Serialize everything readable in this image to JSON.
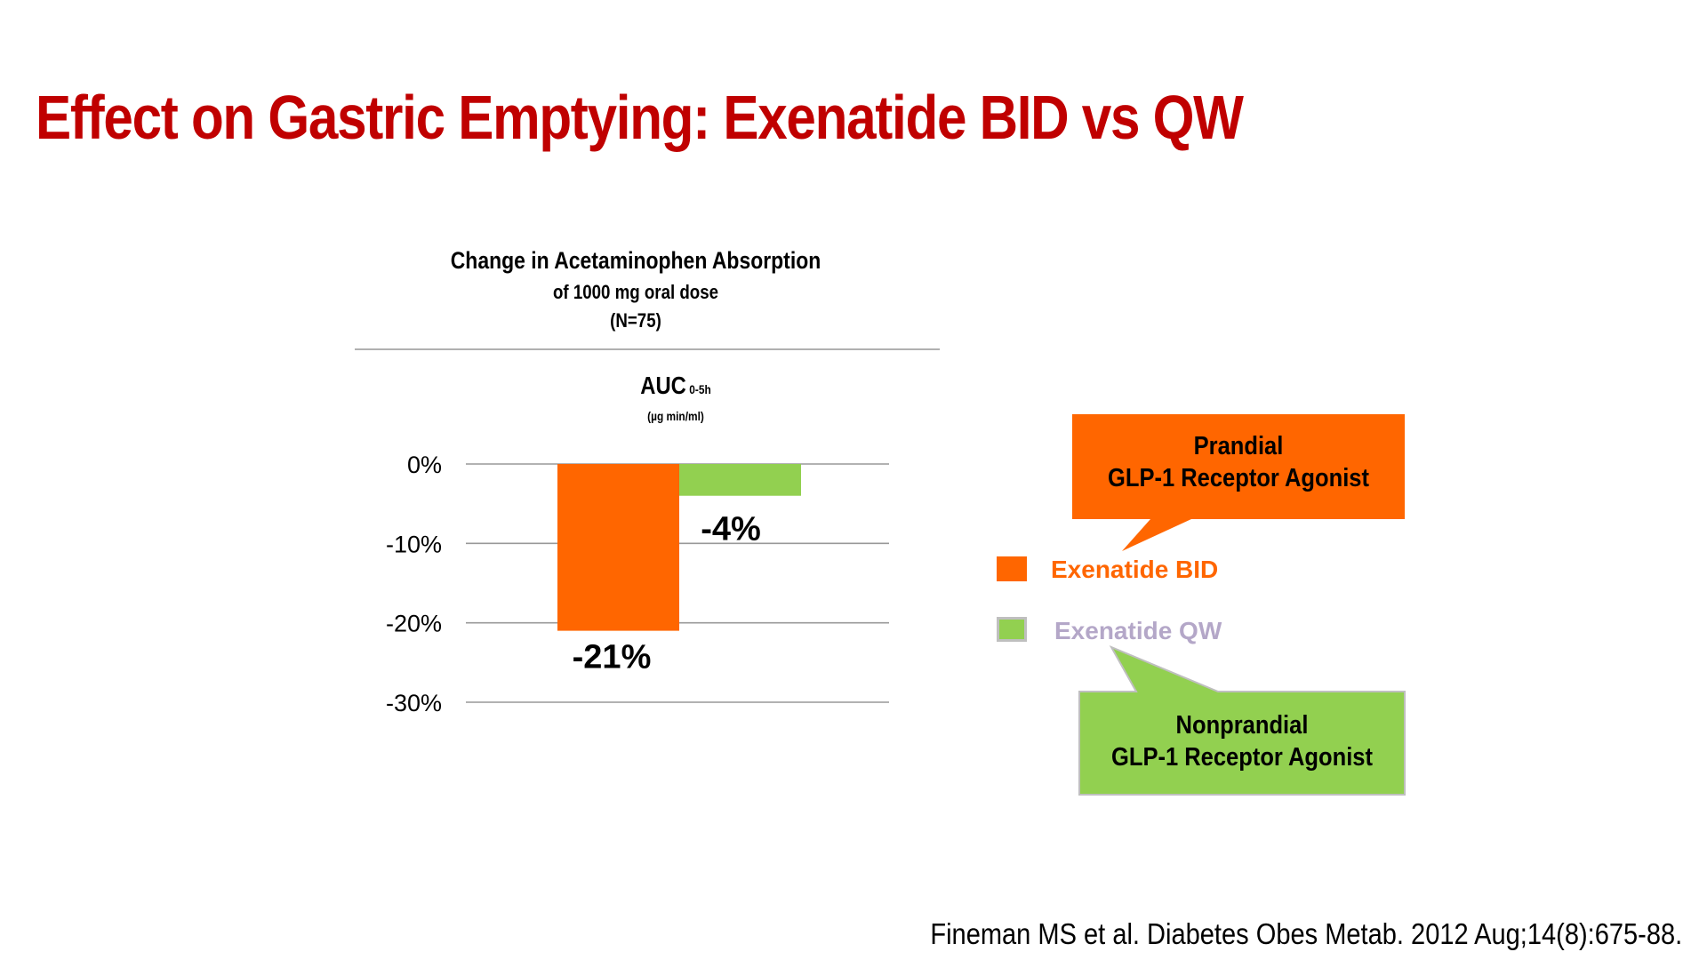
{
  "slide": {
    "title": "Effect on Gastric Emptying: Exenatide BID vs QW",
    "citation": "Fineman MS et al. Diabetes Obes Metab. 2012 Aug;14(8):675-88."
  },
  "chart_header": {
    "line1": "Change in Acetaminophen Absorption",
    "line2": "of 1000 mg oral dose",
    "line3": "(N=75)",
    "metric": "AUC",
    "metric_subscript": "0-5h",
    "units": "(µg min/ml)"
  },
  "chart_data": {
    "type": "bar",
    "title": "Change in Acetaminophen Absorption",
    "ylabel": "AUC 0-5h (µg min/ml)",
    "ylim": [
      -30,
      0
    ],
    "yticks": [
      0,
      -10,
      -20,
      -30
    ],
    "ytick_labels": [
      "0%",
      "-10%",
      "-20%",
      "-30%"
    ],
    "grid": true,
    "series": [
      {
        "name": "Exenatide BID",
        "value": -21,
        "label": "-21%",
        "color": "#FF6600"
      },
      {
        "name": "Exenatide QW",
        "value": -4,
        "label": "-4%",
        "color": "#92D050"
      }
    ]
  },
  "legend": {
    "items": [
      {
        "label": "Exenatide BID",
        "swatch_color": "#FF6600",
        "text_color": "#FF6600"
      },
      {
        "label": "Exenatide QW",
        "swatch_color": "#92D050",
        "text_color": "#B4A7C8"
      }
    ]
  },
  "callouts": {
    "prandial": {
      "line1": "Prandial",
      "line2": "GLP-1 Receptor Agonist",
      "color": "#FF6600"
    },
    "nonprandial": {
      "line1": "Nonprandial",
      "line2": "GLP-1 Receptor Agonist",
      "color": "#92D050"
    }
  },
  "colors": {
    "title": "#C00000",
    "bid": "#FF6600",
    "qw": "#92D050",
    "grid": "#999999"
  }
}
